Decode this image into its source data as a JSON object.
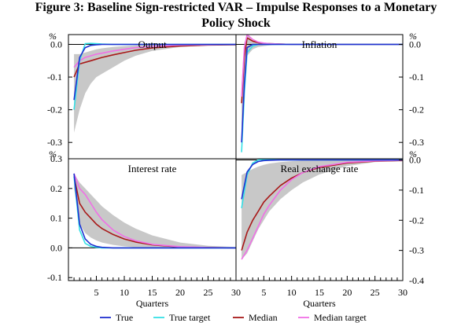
{
  "title_line1": "Figure 3: Baseline Sign-restricted VAR – Impulse Responses to a Monetary",
  "title_line2": "Policy Shock",
  "unit_symbol": "%",
  "colors": {
    "true": "#1f2fd0",
    "true_target": "#35e0e6",
    "median": "#a81818",
    "median_target": "#f070e6",
    "band": "#c8c8c8"
  },
  "legend": [
    "True",
    "True target",
    "Median",
    "Median target"
  ],
  "chart_data": [
    {
      "type": "line",
      "title": "Output",
      "xlabel": "",
      "x_range": [
        0,
        30
      ],
      "ylim": [
        -0.35,
        0.03
      ],
      "y_ticks": [
        0.0,
        -0.1,
        -0.2,
        -0.3
      ],
      "y_tick_labels": [
        "0.0",
        "-0.1",
        "-0.2",
        "-0.3"
      ],
      "y_axis_side": "left",
      "band": {
        "x": [
          1,
          2,
          3,
          4,
          5,
          6,
          8,
          10,
          12,
          15,
          20,
          25,
          30
        ],
        "lower": [
          -0.27,
          -0.2,
          -0.15,
          -0.12,
          -0.1,
          -0.09,
          -0.07,
          -0.05,
          -0.035,
          -0.02,
          -0.008,
          -0.003,
          0
        ],
        "upper": [
          -0.03,
          -0.03,
          -0.025,
          -0.02,
          -0.015,
          -0.012,
          -0.008,
          -0.005,
          -0.003,
          -0.002,
          -0.001,
          0,
          0
        ]
      },
      "series": [
        {
          "name": "True",
          "x": [
            1,
            2,
            3,
            4,
            5,
            6,
            8,
            10,
            30
          ],
          "y": [
            -0.17,
            -0.04,
            -0.01,
            -0.003,
            -0.001,
            0,
            0,
            0,
            0
          ]
        },
        {
          "name": "True target",
          "x": [
            1,
            2,
            3,
            4,
            5,
            6,
            8,
            10,
            30
          ],
          "y": [
            -0.2,
            -0.05,
            0.002,
            0.003,
            0.002,
            0.001,
            0,
            0,
            0
          ]
        },
        {
          "name": "Median",
          "x": [
            1,
            2,
            3,
            4,
            5,
            6,
            8,
            10,
            12,
            15,
            20,
            25,
            30
          ],
          "y": [
            -0.1,
            -0.06,
            -0.055,
            -0.05,
            -0.045,
            -0.04,
            -0.032,
            -0.025,
            -0.018,
            -0.011,
            -0.005,
            -0.002,
            -0.001
          ]
        },
        {
          "name": "Median target",
          "x": [
            1,
            2,
            3,
            4,
            5,
            6,
            8,
            10,
            12,
            15,
            20,
            25,
            30
          ],
          "y": [
            -0.07,
            -0.05,
            -0.04,
            -0.035,
            -0.03,
            -0.027,
            -0.02,
            -0.015,
            -0.01,
            -0.006,
            -0.002,
            -0.001,
            0
          ]
        }
      ]
    },
    {
      "type": "line",
      "title": "Inflation",
      "xlabel": "",
      "x_range": [
        0,
        30
      ],
      "ylim": [
        -0.35,
        0.03
      ],
      "y_ticks": [
        0.0,
        -0.1,
        -0.2,
        -0.3
      ],
      "y_tick_labels": [
        "0.0",
        "-0.1",
        "-0.2",
        "-0.3"
      ],
      "y_axis_side": "right",
      "band": {
        "x": [
          1,
          1.5,
          2,
          3,
          4,
          5,
          6,
          8,
          10,
          30
        ],
        "lower": [
          -0.26,
          -0.1,
          -0.035,
          -0.015,
          -0.008,
          -0.005,
          -0.003,
          -0.001,
          0,
          0
        ],
        "upper": [
          -0.12,
          0.005,
          0.03,
          0.012,
          0.006,
          0.003,
          0.002,
          0.001,
          0,
          0
        ]
      },
      "series": [
        {
          "name": "True",
          "x": [
            1,
            1.5,
            2,
            3,
            4,
            5,
            30
          ],
          "y": [
            -0.3,
            -0.12,
            -0.01,
            0,
            0,
            0,
            0
          ]
        },
        {
          "name": "True target",
          "x": [
            1,
            1.5,
            2,
            3,
            4,
            5,
            30
          ],
          "y": [
            -0.33,
            -0.15,
            -0.025,
            -0.005,
            0,
            0,
            0
          ]
        },
        {
          "name": "Median",
          "x": [
            1,
            1.5,
            2,
            3,
            4,
            5,
            6,
            8,
            10,
            30
          ],
          "y": [
            -0.18,
            -0.04,
            0.02,
            0.01,
            0.005,
            0.003,
            0.002,
            0.001,
            0,
            0
          ]
        },
        {
          "name": "Median target",
          "x": [
            1,
            1.5,
            2,
            3,
            4,
            5,
            6,
            8,
            10,
            30
          ],
          "y": [
            -0.16,
            -0.01,
            0.03,
            0.015,
            0.007,
            0.004,
            0.002,
            0.001,
            0,
            0
          ]
        }
      ]
    },
    {
      "type": "line",
      "title": "Interest rate",
      "xlabel": "Quarters",
      "x_range": [
        0,
        30
      ],
      "ylim": [
        -0.1,
        0.3
      ],
      "y_ticks": [
        0.3,
        0.2,
        0.1,
        0.0,
        -0.1
      ],
      "y_tick_labels": [
        "0.3",
        "0.2",
        "0.1",
        "0.0",
        "-0.1"
      ],
      "y_axis_side": "left",
      "x_ticks": [
        5,
        10,
        15,
        20,
        25,
        30
      ],
      "band": {
        "x": [
          1,
          2,
          3,
          4,
          5,
          6,
          8,
          10,
          12,
          15,
          20,
          25,
          30
        ],
        "lower": [
          0.2,
          0.08,
          0.05,
          0.035,
          0.025,
          0.018,
          0.01,
          0.005,
          0.002,
          0,
          0,
          0,
          0
        ],
        "upper": [
          0.25,
          0.22,
          0.2,
          0.18,
          0.16,
          0.14,
          0.11,
          0.085,
          0.065,
          0.042,
          0.018,
          0.007,
          0.003
        ]
      },
      "series": [
        {
          "name": "True",
          "x": [
            1,
            2,
            3,
            4,
            5,
            6,
            8,
            10,
            30
          ],
          "y": [
            0.25,
            0.08,
            0.03,
            0.012,
            0.005,
            0.002,
            0,
            0,
            0
          ]
        },
        {
          "name": "True target",
          "x": [
            1,
            2,
            3,
            4,
            5,
            6,
            8,
            10,
            30
          ],
          "y": [
            0.24,
            0.06,
            0.015,
            0.005,
            0.002,
            0,
            0,
            0,
            0
          ]
        },
        {
          "name": "Median",
          "x": [
            1,
            2,
            3,
            4,
            5,
            6,
            8,
            10,
            12,
            15,
            20,
            25,
            30
          ],
          "y": [
            0.24,
            0.15,
            0.12,
            0.1,
            0.08,
            0.065,
            0.045,
            0.03,
            0.02,
            0.01,
            0.003,
            0.001,
            0
          ]
        },
        {
          "name": "Median target",
          "x": [
            1,
            2,
            3,
            4,
            5,
            6,
            8,
            10,
            12,
            15,
            20,
            25,
            30
          ],
          "y": [
            0.25,
            0.2,
            0.18,
            0.15,
            0.12,
            0.095,
            0.06,
            0.038,
            0.024,
            0.012,
            0.004,
            0.001,
            0
          ]
        }
      ]
    },
    {
      "type": "line",
      "title": "Real exchange rate",
      "xlabel": "Quarters",
      "x_range": [
        0,
        30
      ],
      "ylim": [
        -0.4,
        0.0
      ],
      "y_ticks": [
        0.0,
        -0.1,
        -0.2,
        -0.3,
        -0.4
      ],
      "y_tick_labels": [
        "0.0",
        "-0.1",
        "-0.2",
        "-0.3",
        "-0.4"
      ],
      "y_axis_side": "right",
      "x_ticks": [
        5,
        10,
        15,
        20,
        25,
        30
      ],
      "band": {
        "x": [
          1,
          2,
          3,
          4,
          5,
          6,
          8,
          10,
          12,
          15,
          20,
          25,
          30
        ],
        "lower": [
          -0.33,
          -0.31,
          -0.27,
          -0.23,
          -0.2,
          -0.17,
          -0.13,
          -0.1,
          -0.075,
          -0.048,
          -0.02,
          -0.007,
          -0.003
        ],
        "upper": [
          -0.05,
          -0.04,
          -0.03,
          -0.022,
          -0.016,
          -0.012,
          -0.007,
          -0.004,
          -0.002,
          -0.001,
          0,
          0,
          0
        ]
      },
      "series": [
        {
          "name": "True",
          "x": [
            1,
            2,
            3,
            4,
            5,
            6,
            8,
            10,
            30
          ],
          "y": [
            -0.13,
            -0.04,
            -0.015,
            -0.005,
            -0.002,
            -0.001,
            0,
            0,
            0
          ]
        },
        {
          "name": "True target",
          "x": [
            1,
            2,
            3,
            4,
            5,
            6,
            8,
            10,
            30
          ],
          "y": [
            -0.16,
            -0.05,
            -0.01,
            0,
            0.002,
            0.001,
            0,
            0,
            0
          ]
        },
        {
          "name": "Median",
          "x": [
            1,
            2,
            3,
            4,
            5,
            6,
            8,
            10,
            12,
            15,
            20,
            25,
            30
          ],
          "y": [
            -0.3,
            -0.24,
            -0.2,
            -0.17,
            -0.14,
            -0.12,
            -0.085,
            -0.06,
            -0.042,
            -0.025,
            -0.01,
            -0.004,
            -0.002
          ]
        },
        {
          "name": "Median target",
          "x": [
            1,
            2,
            3,
            4,
            5,
            6,
            8,
            10,
            12,
            15,
            20,
            25,
            30
          ],
          "y": [
            -0.33,
            -0.3,
            -0.26,
            -0.22,
            -0.18,
            -0.15,
            -0.1,
            -0.065,
            -0.042,
            -0.022,
            -0.008,
            -0.003,
            -0.001
          ]
        }
      ]
    }
  ]
}
